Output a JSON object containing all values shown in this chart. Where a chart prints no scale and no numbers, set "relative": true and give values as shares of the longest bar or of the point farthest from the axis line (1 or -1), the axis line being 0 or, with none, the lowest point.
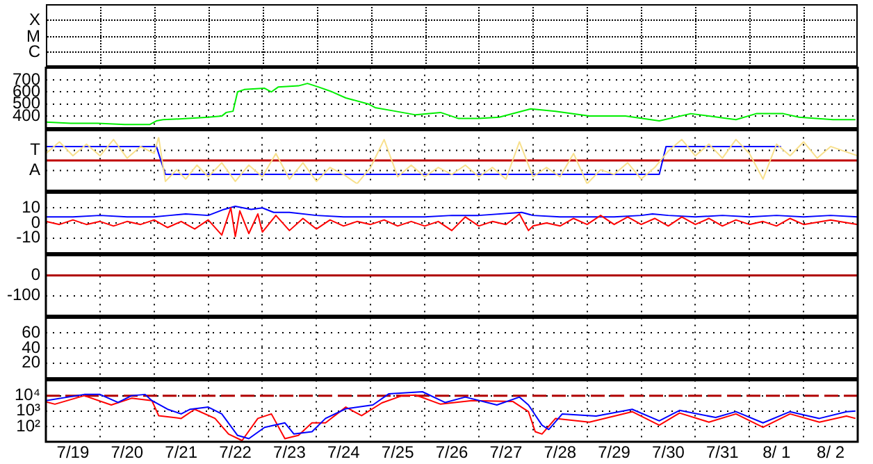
{
  "chart_data": [
    {
      "type": "other",
      "annotations": [
        "X",
        "M",
        "C"
      ]
    },
    {
      "type": "line",
      "marker": "none",
      "series": [
        {
          "color": "#00ee00",
          "x": [
            "--07-19T00:00",
            "--07-19T11:00",
            "--07-19T23:00",
            "--07-20T11:00",
            "--07-20T22:00",
            "--07-21T01:00",
            "--07-21T04:00",
            "--07-21T15:00",
            "--07-22T00:00",
            "--07-22T06:00",
            "--07-22T08:00",
            "--07-22T11:00",
            "--07-22T13:00",
            "--07-22T16:00",
            "--07-23T01:00",
            "--07-23T04:00",
            "--07-23T07:00",
            "--07-23T16:00",
            "--07-23T20:00",
            "--07-24T01:00",
            "--07-24T07:00",
            "--07-24T13:00",
            "--07-24T23:00",
            "--07-25T02:00",
            "--07-25T11:00",
            "--07-25T20:00",
            "--07-26T07:00",
            "--07-26T15:00",
            "--07-27T00:00",
            "--07-27T09:00",
            "--07-27T23:00",
            "--07-28T10:00",
            "--07-29T01:00",
            "--07-29T17:00",
            "--07-30T08:00",
            "--07-30T22:00",
            "--07-31T18:00",
            "--08-01T03:00",
            "--08-01T15:00",
            "--08-01T22:00",
            "--08-02T13:00",
            "--08-02T23:00"
          ],
          "values": [
            350,
            340,
            340,
            330,
            330,
            360,
            370,
            380,
            390,
            400,
            430,
            440,
            600,
            620,
            630,
            600,
            640,
            650,
            670,
            640,
            600,
            550,
            500,
            470,
            440,
            410,
            430,
            380,
            380,
            390,
            460,
            440,
            400,
            400,
            360,
            420,
            370,
            420,
            420,
            390,
            370,
            370
          ]
        }
      ],
      "xlim": [
        "--07-19",
        "--08-03"
      ],
      "xticks": [
        {
          "value": "--07-19",
          "label": null
        },
        {
          "value": "--07-20",
          "label": null
        },
        {
          "value": "--07-21",
          "label": null
        },
        {
          "value": "--07-22",
          "label": null
        },
        {
          "value": "--07-23",
          "label": null
        },
        {
          "value": "--07-24",
          "label": null
        },
        {
          "value": "--07-25",
          "label": null
        },
        {
          "value": "--07-26",
          "label": null
        },
        {
          "value": "--07-27",
          "label": null
        },
        {
          "value": "--07-28",
          "label": null
        },
        {
          "value": "--07-29",
          "label": null
        },
        {
          "value": "--07-30",
          "label": null
        },
        {
          "value": "--07-31",
          "label": null
        },
        {
          "value": "--08-01",
          "label": null
        },
        {
          "value": "--08-02",
          "label": null
        },
        {
          "value": "--08-03",
          "label": null
        }
      ],
      "ylim": [
        300,
        800
      ],
      "yticks": [
        400,
        500,
        600,
        700
      ],
      "grid": true,
      "tick_labels": "y"
    },
    {
      "type": "line",
      "marker": "none",
      "relative": true,
      "annotations": [
        "T",
        "A"
      ],
      "series": [
        {
          "color": "#f8e08c",
          "x": [
            "--07-19T00:00",
            "--07-19T06:00",
            "--07-19T12:00",
            "--07-19T18:00",
            "--07-20T00:00",
            "--07-20T06:00",
            "--07-20T12:00",
            "--07-20T18:00",
            "--07-21T00:00",
            "--07-21T02:00",
            "--07-21T05:00",
            "--07-21T10:00",
            "--07-21T14:00",
            "--07-21T19:00",
            "--07-22T00:00",
            "--07-22T06:00",
            "--07-22T12:00",
            "--07-22T18:00",
            "--07-23T00:00",
            "--07-23T06:00",
            "--07-23T12:00",
            "--07-23T18:00",
            "--07-24T00:00",
            "--07-24T06:00",
            "--07-24T12:00",
            "--07-24T18:00",
            "--07-25T00:00",
            "--07-25T06:00",
            "--07-25T12:00",
            "--07-25T18:00",
            "--07-26T00:00",
            "--07-26T06:00",
            "--07-26T12:00",
            "--07-26T18:00",
            "--07-27T00:00",
            "--07-27T06:00",
            "--07-27T12:00",
            "--07-27T18:00",
            "--07-28T00:00",
            "--07-28T06:00",
            "--07-28T12:00",
            "--07-28T18:00",
            "--07-29T00:00",
            "--07-29T06:00",
            "--07-29T12:00",
            "--07-29T18:00",
            "--07-30T00:00",
            "--07-30T06:00",
            "--07-30T12:00",
            "--07-30T18:00",
            "--07-31T00:00",
            "--07-31T06:00",
            "--07-31T12:00",
            "--07-31T18:00",
            "--08-01T00:00",
            "--08-01T06:00",
            "--08-01T12:00",
            "--08-01T18:00",
            "--08-02T00:00",
            "--08-02T06:00",
            "--08-02T12:00",
            "--08-02T18:00",
            "--08-03T00:00"
          ],
          "values": [
            0.3,
            0.8,
            0.2,
            0.7,
            0.2,
            0.9,
            0.1,
            0.6,
            0.3,
            1,
            -0.9,
            -0.4,
            -0.8,
            -0.2,
            -0.7,
            -0.1,
            -0.9,
            -0.2,
            -0.7,
            0.3,
            -0.8,
            -0.1,
            -0.9,
            -0.3,
            -0.6,
            -1,
            -0.3,
            0.9,
            -0.7,
            -0.2,
            -0.7,
            -0.3,
            -0.6,
            -0.2,
            -0.7,
            -0.3,
            -0.8,
            0.8,
            -0.7,
            -0.3,
            -0.7,
            0.3,
            -1,
            -0.4,
            -0.6,
            -0.1,
            -0.8,
            -0.3,
            0.4,
            0.9,
            0.2,
            0.7,
            0.1,
            0.9,
            0.3,
            -0.8,
            0.7,
            0.2,
            0.8,
            0.1,
            0.6,
            0.4,
            0.2
          ]
        },
        {
          "color": "#0000ff",
          "x": [
            "--07-19T00:00",
            "--07-21T01:00",
            "--07-21T05:00",
            "--07-30T08:00",
            "--07-30T11:00",
            "--08-01T14:00"
          ],
          "values": [
            0.6,
            0.6,
            -0.6,
            -0.6,
            0.6,
            0.6
          ]
        }
      ],
      "ref_lines": [
        {
          "axis": "y",
          "value": 0,
          "color": "#c00000"
        }
      ],
      "xlim": [
        "--07-19",
        "--08-03"
      ],
      "xticks": [
        {
          "value": "--07-19",
          "label": null
        },
        {
          "value": "--07-20",
          "label": null
        },
        {
          "value": "--07-21",
          "label": null
        },
        {
          "value": "--07-22",
          "label": null
        },
        {
          "value": "--07-23",
          "label": null
        },
        {
          "value": "--07-24",
          "label": null
        },
        {
          "value": "--07-25",
          "label": null
        },
        {
          "value": "--07-26",
          "label": null
        },
        {
          "value": "--07-27",
          "label": null
        },
        {
          "value": "--07-28",
          "label": null
        },
        {
          "value": "--07-29",
          "label": null
        },
        {
          "value": "--07-30",
          "label": null
        },
        {
          "value": "--07-31",
          "label": null
        },
        {
          "value": "--08-01",
          "label": null
        },
        {
          "value": "--08-02",
          "label": null
        },
        {
          "value": "--08-03",
          "label": null
        }
      ],
      "grid": true,
      "tick_labels": "y"
    },
    {
      "type": "line",
      "marker": "none",
      "series": [
        {
          "color": "#ff0000",
          "x": [
            "--07-19T00:00",
            "--07-19T06:00",
            "--07-19T12:00",
            "--07-19T18:00",
            "--07-20T00:00",
            "--07-20T06:00",
            "--07-20T12:00",
            "--07-20T18:00",
            "--07-21T00:00",
            "--07-21T06:00",
            "--07-21T12:00",
            "--07-21T18:00",
            "--07-22T00:00",
            "--07-22T06:00",
            "--07-22T10:00",
            "--07-22T12:00",
            "--07-22T14:00",
            "--07-22T18:00",
            "--07-22T22:00",
            "--07-23T00:00",
            "--07-23T06:00",
            "--07-23T12:00",
            "--07-23T18:00",
            "--07-24T00:00",
            "--07-24T06:00",
            "--07-24T12:00",
            "--07-24T18:00",
            "--07-25T00:00",
            "--07-25T06:00",
            "--07-25T12:00",
            "--07-25T18:00",
            "--07-26T00:00",
            "--07-26T06:00",
            "--07-26T12:00",
            "--07-26T18:00",
            "--07-27T00:00",
            "--07-27T06:00",
            "--07-27T12:00",
            "--07-27T18:00",
            "--07-27T22:00",
            "--07-28T00:00",
            "--07-28T06:00",
            "--07-28T12:00",
            "--07-28T18:00",
            "--07-29T00:00",
            "--07-29T06:00",
            "--07-29T12:00",
            "--07-29T18:00",
            "--07-30T00:00",
            "--07-30T06:00",
            "--07-30T12:00",
            "--07-30T18:00",
            "--07-31T00:00",
            "--07-31T06:00",
            "--07-31T12:00",
            "--07-31T18:00",
            "--08-01T00:00",
            "--08-01T06:00",
            "--08-01T12:00",
            "--08-01T18:00",
            "--08-02T00:00",
            "--08-02T12:00",
            "--08-03T00:00"
          ],
          "values": [
            1,
            -1,
            2,
            -1,
            1,
            -2,
            1,
            -1,
            2,
            -3,
            1,
            -4,
            2,
            -8,
            10,
            -9,
            8,
            -7,
            6,
            -6,
            5,
            -5,
            3,
            -4,
            2,
            -2,
            1,
            -1,
            2,
            -2,
            1,
            -2,
            1,
            -5,
            4,
            -2,
            1,
            -1,
            6,
            -5,
            -2,
            0,
            -2,
            3,
            -1,
            5,
            -1,
            4,
            -1,
            3,
            -2,
            4,
            -1,
            3,
            -2,
            2,
            -1,
            1,
            -2,
            3,
            -1,
            2,
            -1
          ]
        },
        {
          "color": "#0000ff",
          "x": [
            "--07-19T00:00",
            "--07-19T12:00",
            "--07-20T00:00",
            "--07-20T12:00",
            "--07-21T00:00",
            "--07-21T07:00",
            "--07-21T14:00",
            "--07-22T00:00",
            "--07-22T07:00",
            "--07-22T12:00",
            "--07-22T19:00",
            "--07-23T00:00",
            "--07-23T05:00",
            "--07-23T12:00",
            "--07-24T00:00",
            "--07-24T12:00",
            "--07-25T00:00",
            "--07-25T12:00",
            "--07-26T00:00",
            "--07-26T12:00",
            "--07-27T00:00",
            "--07-27T19:00",
            "--07-28T00:00",
            "--07-28T12:00",
            "--07-29T00:00",
            "--07-29T12:00",
            "--07-30T00:00",
            "--07-30T05:00",
            "--07-30T12:00",
            "--07-31T00:00",
            "--07-31T12:00",
            "--08-01T00:00",
            "--08-01T12:00",
            "--08-02T00:00",
            "--08-02T12:00",
            "--08-03T00:00"
          ],
          "values": [
            4,
            4,
            5,
            4,
            4,
            5,
            6,
            5,
            9,
            11,
            9,
            10,
            7,
            7,
            5,
            4,
            4,
            4,
            4,
            5,
            5,
            7,
            5,
            4,
            4,
            4,
            5,
            6,
            5,
            4,
            5,
            4,
            5,
            4,
            5,
            4
          ]
        }
      ],
      "xlim": [
        "--07-19",
        "--08-03"
      ],
      "xticks": [
        {
          "value": "--07-19",
          "label": null
        },
        {
          "value": "--07-20",
          "label": null
        },
        {
          "value": "--07-21",
          "label": null
        },
        {
          "value": "--07-22",
          "label": null
        },
        {
          "value": "--07-23",
          "label": null
        },
        {
          "value": "--07-24",
          "label": null
        },
        {
          "value": "--07-25",
          "label": null
        },
        {
          "value": "--07-26",
          "label": null
        },
        {
          "value": "--07-27",
          "label": null
        },
        {
          "value": "--07-28",
          "label": null
        },
        {
          "value": "--07-29",
          "label": null
        },
        {
          "value": "--07-30",
          "label": null
        },
        {
          "value": "--07-31",
          "label": null
        },
        {
          "value": "--08-01",
          "label": null
        },
        {
          "value": "--08-02",
          "label": null
        },
        {
          "value": "--08-03",
          "label": null
        }
      ],
      "ylim": [
        -20,
        20
      ],
      "yticks": [
        10,
        0,
        -10
      ],
      "grid": true,
      "tick_labels": "y"
    },
    {
      "type": "line",
      "ref_lines": [
        {
          "axis": "y",
          "value": 0,
          "color": "#b00000"
        }
      ],
      "xlim": [
        "--07-19",
        "--08-03"
      ],
      "xticks": [
        {
          "value": "--07-19",
          "label": null
        },
        {
          "value": "--07-20",
          "label": null
        },
        {
          "value": "--07-21",
          "label": null
        },
        {
          "value": "--07-22",
          "label": null
        },
        {
          "value": "--07-23",
          "label": null
        },
        {
          "value": "--07-24",
          "label": null
        },
        {
          "value": "--07-25",
          "label": null
        },
        {
          "value": "--07-26",
          "label": null
        },
        {
          "value": "--07-27",
          "label": null
        },
        {
          "value": "--07-28",
          "label": null
        },
        {
          "value": "--07-29",
          "label": null
        },
        {
          "value": "--07-30",
          "label": null
        },
        {
          "value": "--07-31",
          "label": null
        },
        {
          "value": "--08-01",
          "label": null
        },
        {
          "value": "--08-02",
          "label": null
        },
        {
          "value": "--08-03",
          "label": null
        }
      ],
      "ylim": [
        -200,
        100
      ],
      "yticks": [
        0,
        -100
      ],
      "grid": true,
      "tick_labels": "y"
    },
    {
      "type": "line",
      "xlim": [
        "--07-19",
        "--08-03"
      ],
      "xticks": [
        {
          "value": "--07-19",
          "label": null
        },
        {
          "value": "--07-20",
          "label": null
        },
        {
          "value": "--07-21",
          "label": null
        },
        {
          "value": "--07-22",
          "label": null
        },
        {
          "value": "--07-23",
          "label": null
        },
        {
          "value": "--07-24",
          "label": null
        },
        {
          "value": "--07-25",
          "label": null
        },
        {
          "value": "--07-26",
          "label": null
        },
        {
          "value": "--07-27",
          "label": null
        },
        {
          "value": "--07-28",
          "label": null
        },
        {
          "value": "--07-29",
          "label": null
        },
        {
          "value": "--07-30",
          "label": null
        },
        {
          "value": "--07-31",
          "label": null
        },
        {
          "value": "--08-01",
          "label": null
        },
        {
          "value": "--08-02",
          "label": null
        },
        {
          "value": "--08-03",
          "label": null
        }
      ],
      "ylim": [
        0,
        80
      ],
      "yticks": [
        60,
        40,
        20
      ],
      "grid": true,
      "tick_labels": "y"
    },
    {
      "type": "line",
      "marker": "none",
      "log": true,
      "series": [
        {
          "color": "#0000ff",
          "x": [
            "--07-19T00:00",
            "--07-19T17:00",
            "--07-20T00:00",
            "--07-20T08:00",
            "--07-20T14:00",
            "--07-20T20:00",
            "--07-20T23:00",
            "--07-21T06:00",
            "--07-21T12:00",
            "--07-21T16:00",
            "--07-22T00:00",
            "--07-22T06:00",
            "--07-22T13:00",
            "--07-22T18:00",
            "--07-23T01:00",
            "--07-23T10:00",
            "--07-23T14:00",
            "--07-23T22:00",
            "--07-24T04:00",
            "--07-24T13:00",
            "--07-25T01:00",
            "--07-25T08:00",
            "--07-25T23:00",
            "--07-26T09:00",
            "--07-26T18:00",
            "--07-27T08:00",
            "--07-27T18:00",
            "--07-27T22:00",
            "--07-28T04:00",
            "--07-28T07:00",
            "--07-28T13:00",
            "--07-29T04:00",
            "--07-29T20:00",
            "--07-30T08:00",
            "--07-30T17:00",
            "--07-31T09:00",
            "--07-31T18:00",
            "--08-01T06:00",
            "--08-01T18:00",
            "--08-02T07:00",
            "--08-02T19:00",
            "--08-02T23:00"
          ],
          "values": [
            4800,
            12000,
            12000,
            3600,
            10000,
            12000,
            4800,
            1300,
            650,
            1300,
            1800,
            650,
            26,
            16,
            87,
            170,
            32,
            45,
            330,
            1400,
            2500,
            13000,
            18000,
            3600,
            8100,
            2500,
            8100,
            2500,
            120,
            63,
            650,
            470,
            1300,
            230,
            1100,
            380,
            910,
            170,
            910,
            330,
            910,
            1000
          ]
        },
        {
          "color": "#ff0000",
          "x": [
            "--07-19T00:00",
            "--07-19T04:00",
            "--07-19T17:00",
            "--07-20T05:00",
            "--07-20T14:00",
            "--07-20T23:00",
            "--07-21T02:00",
            "--07-21T12:00",
            "--07-21T18:00",
            "--07-22T03:00",
            "--07-22T09:00",
            "--07-22T15:00",
            "--07-22T22:00",
            "--07-23T04:00",
            "--07-23T10:00",
            "--07-23T16:00",
            "--07-23T22:00",
            "--07-24T04:00",
            "--07-24T13:00",
            "--07-24T20:00",
            "--07-25T05:00",
            "--07-25T14:00",
            "--07-25T20:00",
            "--07-26T07:00",
            "--07-26T21:00",
            "--07-27T15:00",
            "--07-27T22:00",
            "--07-28T01:00",
            "--07-28T04:00",
            "--07-28T10:00",
            "--07-29T01:00",
            "--07-29T20:00",
            "--07-30T08:00",
            "--07-30T17:00",
            "--07-31T06:00",
            "--07-31T18:00",
            "--08-01T06:00",
            "--08-01T18:00",
            "--08-02T07:00",
            "--08-02T19:00",
            "--08-02T23:00"
          ],
          "values": [
            4000,
            2800,
            10000,
            2500,
            6800,
            4800,
            500,
            330,
            1300,
            330,
            32,
            12,
            330,
            650,
            16,
            26,
            170,
            170,
            1800,
            500,
            3400,
            10000,
            11000,
            2800,
            4800,
            4200,
            910,
            45,
            32,
            330,
            190,
            910,
            120,
            740,
            190,
            650,
            87,
            650,
            190,
            470,
            330
          ]
        }
      ],
      "ref_lines": [
        {
          "axis": "y",
          "value": 10000,
          "color": "#b00000",
          "line_style": "dashed"
        }
      ],
      "xlim": [
        "--07-19",
        "--08-03"
      ],
      "xticks": [
        {
          "value": "--07-19",
          "label": null
        },
        {
          "value": "--07-19T12:00",
          "label": "7/19"
        },
        {
          "value": "--07-20",
          "label": null
        },
        {
          "value": "--07-20T12:00",
          "label": "7/20"
        },
        {
          "value": "--07-21",
          "label": null
        },
        {
          "value": "--07-21T12:00",
          "label": "7/21"
        },
        {
          "value": "--07-22",
          "label": null
        },
        {
          "value": "--07-22T12:00",
          "label": "7/22"
        },
        {
          "value": "--07-23",
          "label": null
        },
        {
          "value": "--07-23T12:00",
          "label": "7/23"
        },
        {
          "value": "--07-24",
          "label": null
        },
        {
          "value": "--07-24T12:00",
          "label": "7/24"
        },
        {
          "value": "--07-25",
          "label": null
        },
        {
          "value": "--07-25T12:00",
          "label": "7/25"
        },
        {
          "value": "--07-26",
          "label": null
        },
        {
          "value": "--07-26T12:00",
          "label": "7/26"
        },
        {
          "value": "--07-27",
          "label": null
        },
        {
          "value": "--07-27T12:00",
          "label": "7/27"
        },
        {
          "value": "--07-28",
          "label": null
        },
        {
          "value": "--07-28T12:00",
          "label": "7/28"
        },
        {
          "value": "--07-29",
          "label": null
        },
        {
          "value": "--07-29T12:00",
          "label": "7/29"
        },
        {
          "value": "--07-30",
          "label": null
        },
        {
          "value": "--07-30T12:00",
          "label": "7/30"
        },
        {
          "value": "--07-31",
          "label": null
        },
        {
          "value": "--07-31T12:00",
          "label": "7/31"
        },
        {
          "value": "--08-01",
          "label": null
        },
        {
          "value": "--08-01T12:00",
          "label": "8/ 1"
        },
        {
          "value": "--08-02",
          "label": null
        },
        {
          "value": "--08-02T12:00",
          "label": "8/ 2"
        },
        {
          "value": "--08-03",
          "label": null
        }
      ],
      "ylim": [
        10,
        100000
      ],
      "yticks": [
        {
          "value": 10000,
          "label": "10⁴"
        },
        {
          "value": 1000,
          "label": "10³"
        },
        {
          "value": 100,
          "label": "10²"
        }
      ],
      "grid": true
    }
  ]
}
